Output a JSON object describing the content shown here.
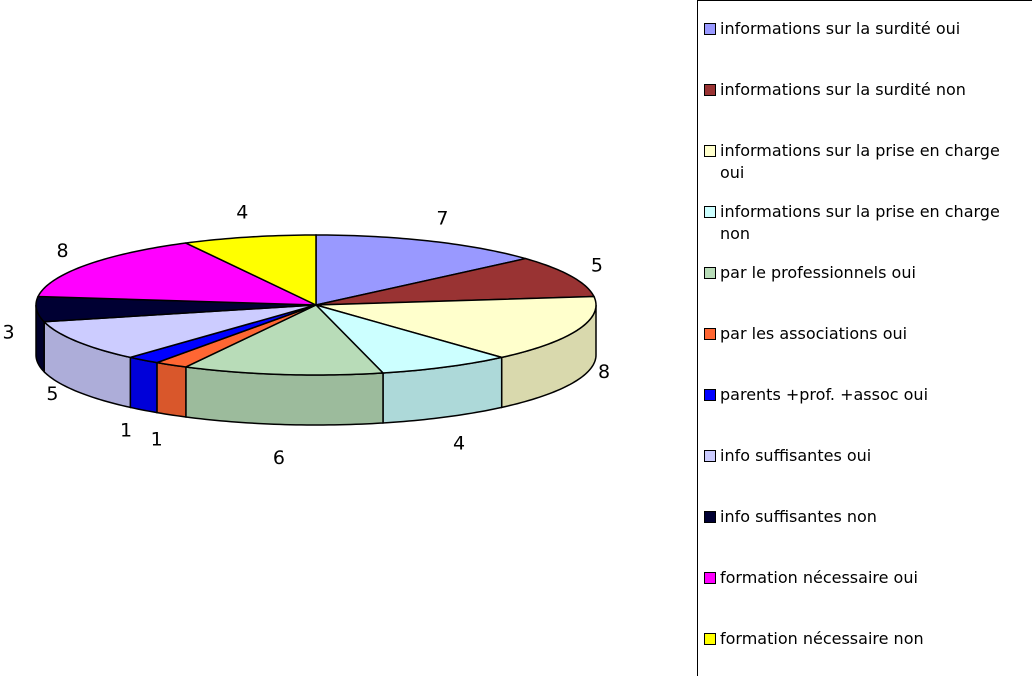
{
  "chart_data": {
    "type": "pie3d",
    "categories": [
      "informations sur la surdité oui",
      "informations sur la surdité non",
      "informations sur la prise en charge oui",
      "informations sur la prise en charge non",
      "par le professionnels oui",
      "par les associations oui",
      "parents +prof. +assoc oui",
      "info suffisantes oui",
      "info suffisantes non",
      "formation nécessaire oui",
      "formation nécessaire non"
    ],
    "values": [
      7,
      5,
      8,
      4,
      6,
      1,
      1,
      5,
      3,
      8,
      4
    ],
    "colors": [
      "#9999ff",
      "#993333",
      "#ffffcc",
      "#ccffff",
      "#b8dcb8",
      "#ff6633",
      "#0000ff",
      "#ccccff",
      "#000033",
      "#ff00ff",
      "#ffff00"
    ],
    "legend": "right"
  }
}
